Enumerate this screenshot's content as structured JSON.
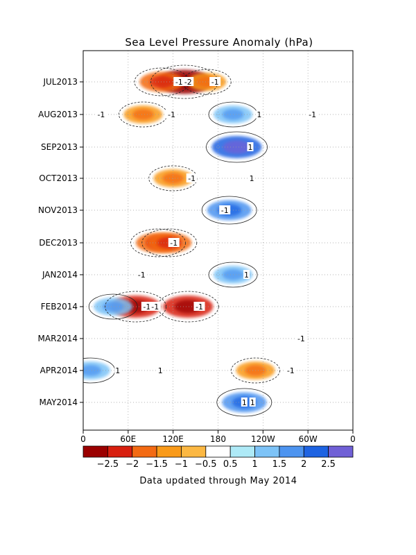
{
  "chart_data": {
    "type": "heatmap",
    "title": "Sea Level Pressure Anomaly (hPa)",
    "footer": "Data updated through May 2014",
    "xlabel": "",
    "ylabel": "",
    "x_ticks": [
      "0",
      "60E",
      "120E",
      "180",
      "120W",
      "60W",
      "0"
    ],
    "y_ticks": [
      "JUL2013",
      "AUG2013",
      "SEP2013",
      "OCT2013",
      "NOV2013",
      "DEC2013",
      "JAN2014",
      "FEB2014",
      "MAR2014",
      "APR2014",
      "MAY2014"
    ],
    "grid": true,
    "colorbar": {
      "labels": [
        "-2.5",
        "-2",
        "-1.5",
        "-1",
        "-0.5",
        "0.5",
        "1",
        "1.5",
        "2",
        "2.5"
      ],
      "colors": [
        "#9b0000",
        "#d81f0f",
        "#f36a13",
        "#f99a19",
        "#fcb843",
        "#ffffff",
        "#aeeaf7",
        "#7dc3f7",
        "#4d94f0",
        "#1e63e2",
        "#7060d6"
      ]
    },
    "anomaly_regions": [
      {
        "lon": 135,
        "month": "JUL2013",
        "value": -2.5
      },
      {
        "lon": 105,
        "month": "JUL2013",
        "value": -1.5
      },
      {
        "lon": 165,
        "month": "JUL2013",
        "value": -1
      },
      {
        "lon": 80,
        "month": "AUG2013",
        "value": -1
      },
      {
        "lon": 200,
        "month": "AUG2013",
        "value": 1
      },
      {
        "lon": 205,
        "month": "SEP2013",
        "value": 2
      },
      {
        "lon": 120,
        "month": "OCT2013",
        "value": -1
      },
      {
        "lon": 195,
        "month": "NOV2013",
        "value": 1.5
      },
      {
        "lon": 100,
        "month": "DEC2013",
        "value": -1.5
      },
      {
        "lon": 115,
        "month": "DEC2013",
        "value": -1.5
      },
      {
        "lon": 200,
        "month": "JAN2014",
        "value": 1
      },
      {
        "lon": 70,
        "month": "FEB2014",
        "value": -2
      },
      {
        "lon": 140,
        "month": "FEB2014",
        "value": -2
      },
      {
        "lon": 40,
        "month": "FEB2014",
        "value": 1
      },
      {
        "lon": 10,
        "month": "APR2014",
        "value": 1
      },
      {
        "lon": 230,
        "month": "APR2014",
        "value": -1
      },
      {
        "lon": 215,
        "month": "MAY2014",
        "value": 1.5
      }
    ],
    "contour_labels": [
      {
        "text": "-2",
        "lon": 140,
        "month": "JUL2013"
      },
      {
        "text": "-1",
        "lon": 128,
        "month": "JUL2013"
      },
      {
        "text": "-1",
        "lon": 176,
        "month": "JUL2013"
      },
      {
        "text": "-1",
        "lon": 118,
        "month": "AUG2013"
      },
      {
        "text": "1",
        "lon": 235,
        "month": "AUG2013"
      },
      {
        "text": "-1",
        "lon": 24,
        "month": "AUG2013"
      },
      {
        "text": "-1",
        "lon": 306,
        "month": "AUG2013"
      },
      {
        "text": "1",
        "lon": 223,
        "month": "SEP2013"
      },
      {
        "text": "-1",
        "lon": 145,
        "month": "OCT2013"
      },
      {
        "text": "1",
        "lon": 225,
        "month": "OCT2013"
      },
      {
        "text": "-1",
        "lon": 189,
        "month": "NOV2013"
      },
      {
        "text": "-1",
        "lon": 121,
        "month": "DEC2013"
      },
      {
        "text": "-1",
        "lon": 78,
        "month": "JAN2014"
      },
      {
        "text": "1",
        "lon": 218,
        "month": "JAN2014"
      },
      {
        "text": "1",
        "lon": 83,
        "month": "FEB2014"
      },
      {
        "text": "-1",
        "lon": 85,
        "month": "FEB2014"
      },
      {
        "text": "-1",
        "lon": 96,
        "month": "FEB2014"
      },
      {
        "text": "-1",
        "lon": 155,
        "month": "FEB2014"
      },
      {
        "text": "1",
        "lon": 46,
        "month": "APR2014"
      },
      {
        "text": "1",
        "lon": 103,
        "month": "APR2014"
      },
      {
        "text": "-1",
        "lon": 277,
        "month": "APR2014"
      },
      {
        "text": "-1",
        "lon": 291,
        "month": "MAR2014"
      },
      {
        "text": "1",
        "lon": 226,
        "month": "MAY2014"
      },
      {
        "text": "1",
        "lon": 215,
        "month": "MAY2014"
      }
    ]
  }
}
